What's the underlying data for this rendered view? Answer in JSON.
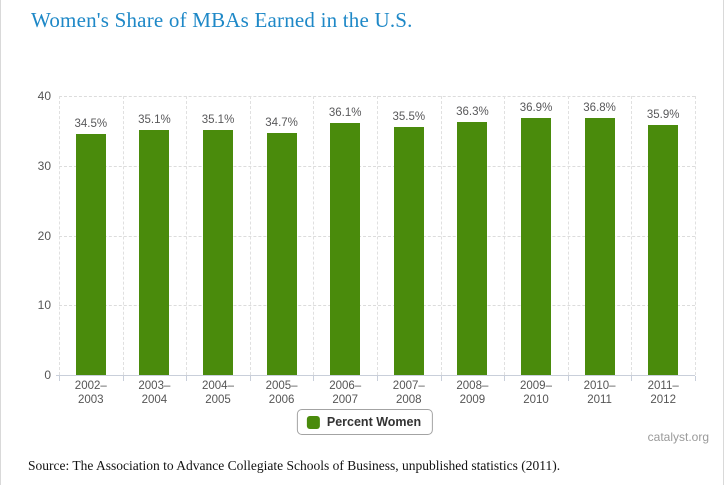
{
  "page": {
    "title": "Women's Share of MBAs Earned in the U.S.",
    "source_note": "Source: The Association to Advance Collegiate Schools of Business, unpublished statistics (2011).",
    "watermark": "catalyst.org"
  },
  "legend": {
    "label": "Percent Women"
  },
  "colors": {
    "bar_green": "#4a8b0c",
    "title_blue": "#1e88c7",
    "gridline": "#dcdcdc",
    "axis_line": "#c9cfda",
    "axis_label": "#555555",
    "data_label": "#58585a",
    "watermark": "#9a9a9a"
  },
  "chart_data": {
    "type": "bar",
    "title": "Women's Share of MBAs Earned in the U.S.",
    "categories": [
      "2002–2003",
      "2003–2004",
      "2004–2005",
      "2005–2006",
      "2006–2007",
      "2007–2008",
      "2008–2009",
      "2009–2010",
      "2010–2011",
      "2011–2012"
    ],
    "values": [
      34.5,
      35.1,
      35.1,
      34.7,
      36.1,
      35.5,
      36.3,
      36.9,
      36.8,
      35.9
    ],
    "data_labels": [
      "34.5%",
      "35.1%",
      "35.1%",
      "34.7%",
      "36.1%",
      "35.5%",
      "36.3%",
      "36.9%",
      "36.8%",
      "35.9%"
    ],
    "series_name": "Percent Women",
    "xlabel": "",
    "ylabel": "",
    "ylim": [
      0,
      40
    ],
    "yticks": [
      0,
      10,
      20,
      30,
      40
    ],
    "grid": "dashed",
    "legend_position": "bottom"
  }
}
